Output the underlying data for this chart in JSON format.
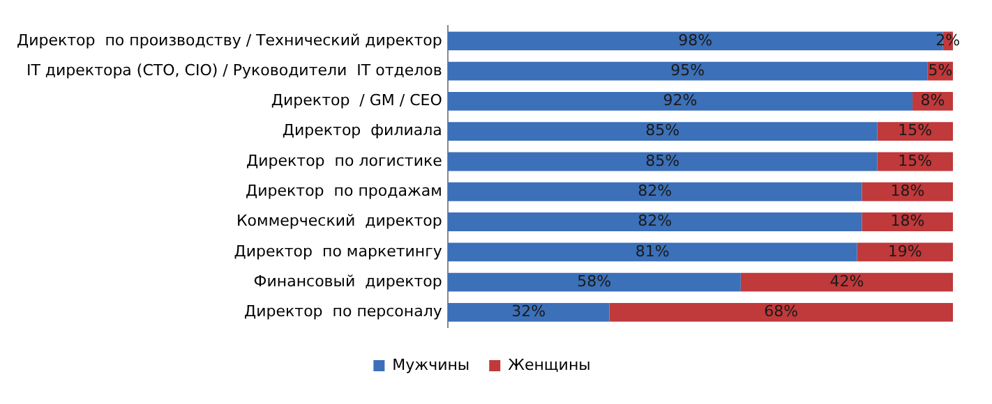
{
  "chart_data": {
    "type": "bar",
    "orientation": "horizontal",
    "stacked": true,
    "grid": false,
    "legend": "bottom",
    "categories": [
      "Директор  по производству / Технический директор",
      "IT директора (СТО, CIO) / Руководители  IT отделов",
      "Директор  / GM / CEO",
      "Директор  филиала",
      "Директор  по логистике",
      "Директор  по продажам",
      "Коммерческий  директор",
      "Директор  по маркетингу",
      "Финансовый  директор",
      "Директор  по персоналу"
    ],
    "series": [
      {
        "name": "Мужчины",
        "color": "#3c70b8",
        "values": [
          98,
          95,
          92,
          85,
          85,
          82,
          82,
          81,
          58,
          32
        ],
        "value_labels": [
          "98%",
          "95%",
          "92%",
          "85%",
          "85%",
          "82%",
          "82%",
          "81%",
          "58%",
          "32%"
        ]
      },
      {
        "name": "Женщины",
        "color": "#c0393b",
        "values": [
          2,
          5,
          8,
          15,
          15,
          18,
          18,
          19,
          42,
          68
        ],
        "value_labels": [
          "2%",
          "5%",
          "8%",
          "15%",
          "15%",
          "18%",
          "18%",
          "19%",
          "42%",
          "68%"
        ]
      }
    ]
  }
}
